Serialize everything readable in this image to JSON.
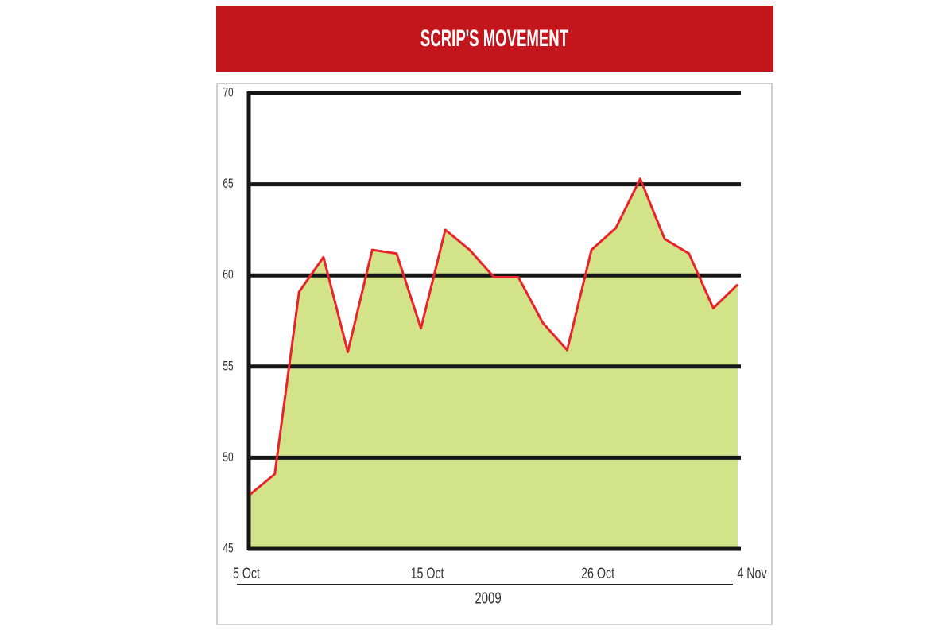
{
  "chart_data": {
    "type": "area",
    "title": "SCRIP'S MOVEMENT",
    "xlabel": "2009",
    "categories": [
      "5 Oct",
      null,
      null,
      null,
      null,
      null,
      null,
      "15 Oct",
      null,
      null,
      null,
      null,
      null,
      null,
      "26 Oct",
      null,
      null,
      null,
      null,
      null,
      "4 Nov"
    ],
    "series": [
      {
        "color": "#e8242a",
        "fill": "#d3e38a",
        "values": [
          48.0,
          49.1,
          59.1,
          61.0,
          55.8,
          61.4,
          61.2,
          57.1,
          62.5,
          61.4,
          59.9,
          59.9,
          57.4,
          55.9,
          61.4,
          62.6,
          65.3,
          62.0,
          61.2,
          58.2,
          59.5
        ]
      }
    ],
    "ylim": [
      45,
      70
    ],
    "yticks": [
      45,
      50,
      55,
      60,
      65,
      70
    ],
    "grid": true
  }
}
